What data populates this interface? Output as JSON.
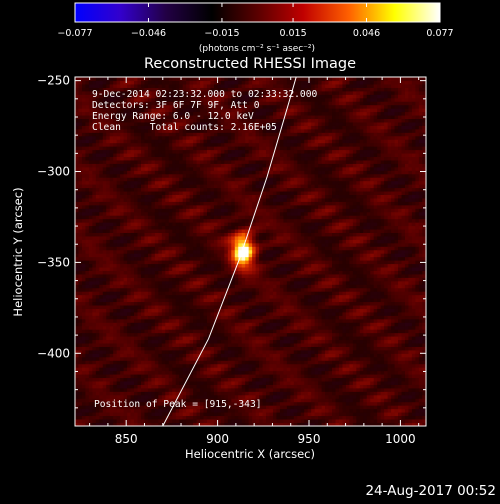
{
  "chart_data": {
    "type": "heatmap",
    "title": "Reconstructed RHESSI Image",
    "xlabel": "Heliocentric X (arcsec)",
    "ylabel": "Heliocentric Y (arcsec)",
    "xlim": [
      822,
      1014
    ],
    "ylim": [
      -440,
      -248
    ],
    "x_ticks": [
      850,
      900,
      950,
      1000
    ],
    "y_ticks": [
      -250,
      -300,
      -350,
      -400
    ],
    "x_tick_labels": [
      "850",
      "900",
      "950",
      "1000"
    ],
    "y_tick_labels": [
      "−250",
      "−300",
      "−350",
      "−400"
    ],
    "colorbar": {
      "min": -0.077,
      "max": 0.077,
      "ticks": [
        -0.077,
        -0.046,
        -0.015,
        0.015,
        0.046,
        0.077
      ],
      "tick_labels": [
        "−0.077",
        "−0.046",
        "−0.015",
        "0.015",
        "0.046",
        "0.077"
      ],
      "label": "(photons cm⁻² s⁻¹ asec⁻²)",
      "colors": [
        "#0000ff",
        "#3300cc",
        "#220044",
        "#000000",
        "#5a0000",
        "#c00000",
        "#ff6000",
        "#ffff00",
        "#ffffff"
      ]
    },
    "source": {
      "x": 914,
      "y": -343,
      "sigma_x": 4.5,
      "sigma_y": 7,
      "peak": 0.077
    },
    "limb_points": [
      [
        870,
        -440
      ],
      [
        895,
        -392
      ],
      [
        912,
        -348
      ],
      [
        927,
        -303
      ],
      [
        939,
        -262
      ],
      [
        943,
        -248
      ]
    ],
    "info": [
      "9-Dec-2014 02:23:32.000 to 02:33:32.000",
      "Detectors: 3F 6F 7F 9F, Att 0",
      "Energy Range: 6.0 - 12.0 keV",
      "Clean     Total counts: 2.16E+05"
    ],
    "peak_text": "Position of Peak = [915,-343]"
  },
  "footer": {
    "timestamp": "24-Aug-2017 00:52"
  }
}
